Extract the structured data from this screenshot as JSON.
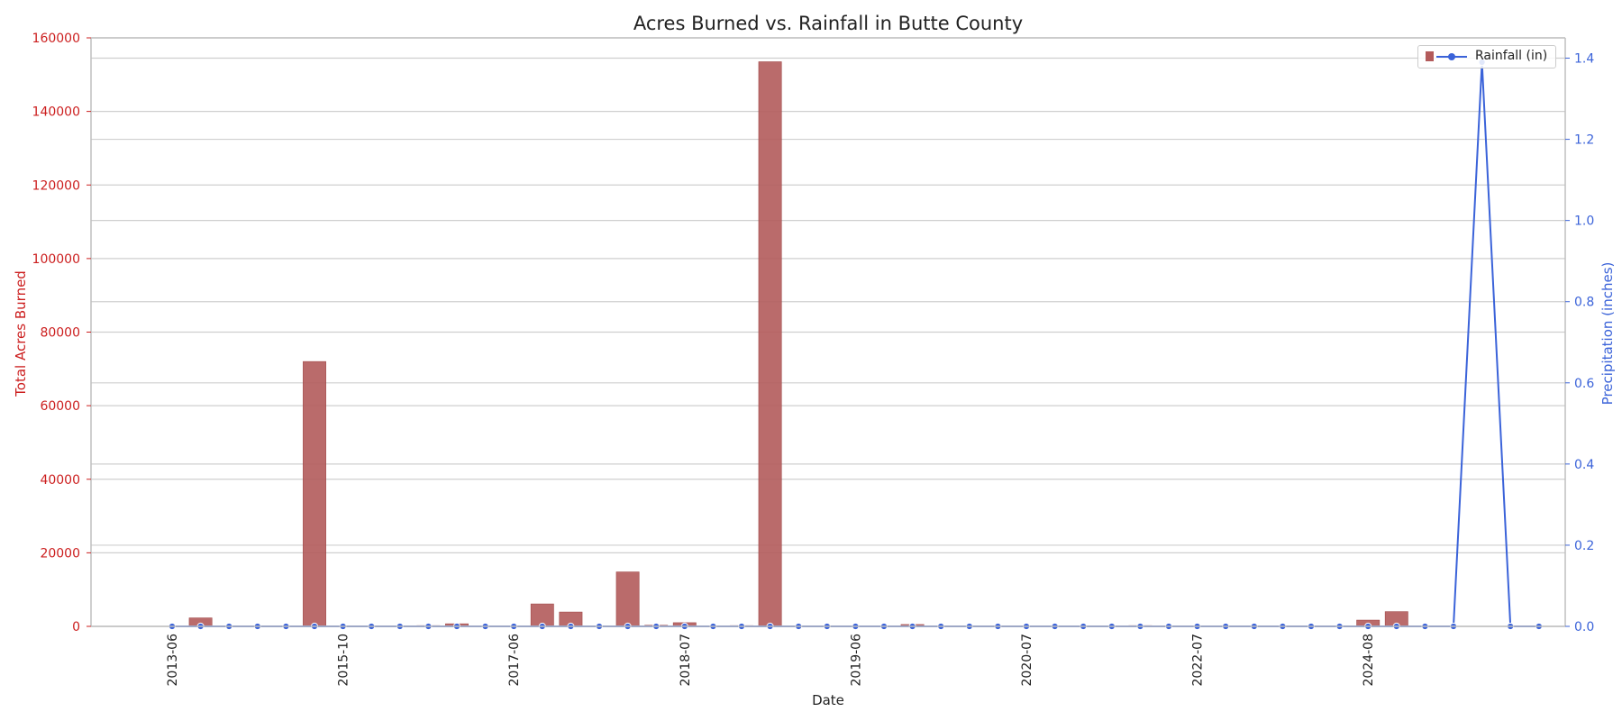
{
  "chart_data": {
    "type": "bar",
    "title": "Acres Burned vs. Rainfall in Butte County",
    "xlabel": "Date",
    "y_left_label": "Total Acres Burned",
    "y_right_label": "Precipitation (inches)",
    "y_left_lim": [
      0,
      160000
    ],
    "y_right_lim": [
      0,
      1.45
    ],
    "y_left_ticks": [
      "0",
      "20000",
      "40000",
      "60000",
      "80000",
      "100000",
      "120000",
      "140000",
      "160000"
    ],
    "y_right_ticks": [
      "0.0",
      "0.2",
      "0.4",
      "0.6",
      "0.8",
      "1.0",
      "1.2",
      "1.4"
    ],
    "x_tick_labels": [
      "2013-06",
      "2015-10",
      "2017-06",
      "2018-07",
      "2019-06",
      "2020-07",
      "2022-07",
      "2024-08"
    ],
    "x_tick_positions": [
      0,
      6,
      12,
      18,
      24,
      30,
      36,
      42
    ],
    "grid": true,
    "legend_position": "top-right",
    "colors": {
      "bars": "#b35b5b",
      "line": "#3b63d9",
      "left_axis": "#cc1f1f",
      "right_axis": "#3b63d9"
    },
    "series": [
      {
        "name": "Acres Burned",
        "type": "bar",
        "values": [
          0,
          2300,
          0,
          0,
          0,
          72000,
          0,
          0,
          0,
          200,
          700,
          0,
          0,
          6100,
          3900,
          0,
          14800,
          300,
          1000,
          0,
          200,
          153500,
          0,
          0,
          0,
          0,
          500,
          0,
          0,
          0,
          0,
          0,
          0,
          0,
          200,
          0,
          0,
          0,
          0,
          0,
          0,
          0,
          1700,
          4000,
          0,
          0,
          0,
          0,
          0
        ]
      },
      {
        "name": "Rainfall (in)",
        "type": "line",
        "points": [
          [
            0,
            0
          ],
          [
            1,
            0
          ],
          [
            2,
            0
          ],
          [
            3,
            0
          ],
          [
            4,
            0
          ],
          [
            5,
            0
          ],
          [
            6,
            0
          ],
          [
            7,
            0
          ],
          [
            8,
            0
          ],
          [
            9,
            0
          ],
          [
            10,
            0
          ],
          [
            11,
            0
          ],
          [
            12,
            0
          ],
          [
            13,
            0
          ],
          [
            14,
            0
          ],
          [
            15,
            0
          ],
          [
            16,
            0
          ],
          [
            17,
            0
          ],
          [
            18,
            0
          ],
          [
            19,
            0
          ],
          [
            20,
            0
          ],
          [
            21,
            0
          ],
          [
            22,
            0
          ],
          [
            23,
            0
          ],
          [
            24,
            0
          ],
          [
            25,
            0
          ],
          [
            26,
            0
          ],
          [
            27,
            0
          ],
          [
            28,
            0
          ],
          [
            29,
            0
          ],
          [
            30,
            0
          ],
          [
            31,
            0
          ],
          [
            32,
            0
          ],
          [
            33,
            0
          ],
          [
            34,
            0
          ],
          [
            35,
            0
          ],
          [
            36,
            0
          ],
          [
            37,
            0
          ],
          [
            38,
            0
          ],
          [
            39,
            0
          ],
          [
            40,
            0
          ],
          [
            41,
            0
          ],
          [
            42,
            0
          ],
          [
            43,
            0
          ],
          [
            44,
            0
          ],
          [
            45,
            0
          ],
          [
            46,
            1.39
          ],
          [
            47,
            0
          ],
          [
            48,
            0
          ]
        ]
      }
    ]
  }
}
